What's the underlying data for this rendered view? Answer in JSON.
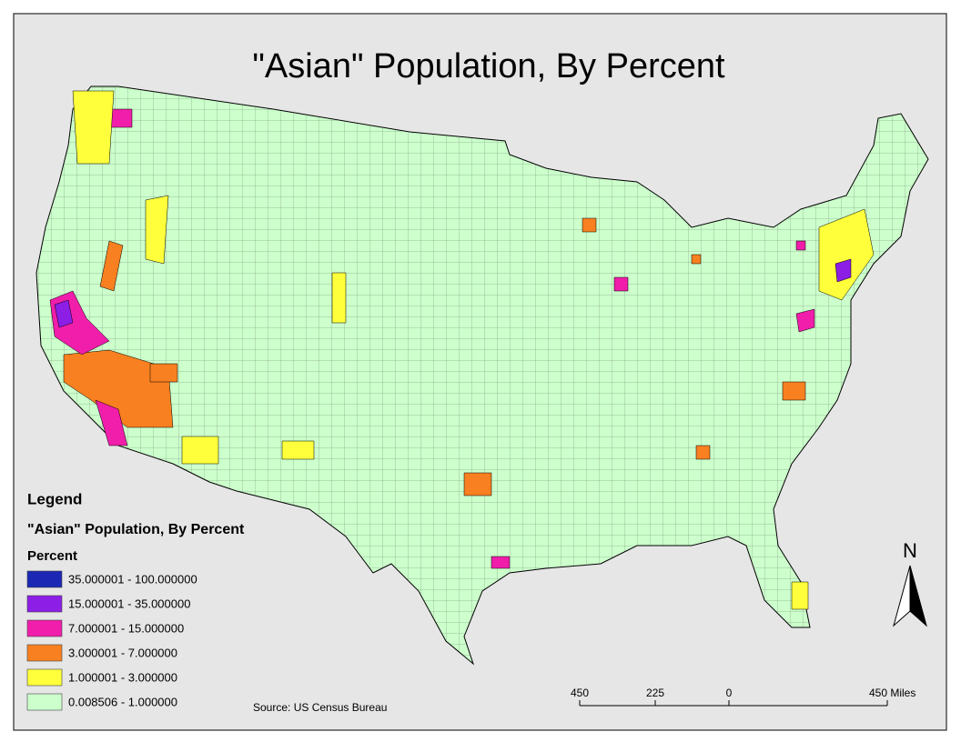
{
  "title": "\"Asian\" Population, By Percent",
  "legend": {
    "heading": "Legend",
    "layer": "\"Asian\" Population, By Percent",
    "field": "Percent",
    "classes": [
      {
        "label": "35.000001 - 100.000000",
        "color": "#1c28b4"
      },
      {
        "label": "15.000001 - 35.000000",
        "color": "#8c1ee6"
      },
      {
        "label": "7.000001 - 15.000000",
        "color": "#f01eaa"
      },
      {
        "label": "3.000001 - 7.000000",
        "color": "#f88020"
      },
      {
        "label": "1.000001 - 3.000000",
        "color": "#ffff3c"
      },
      {
        "label": "0.008506 - 1.000000",
        "color": "#ccffcc"
      }
    ]
  },
  "source": "Source: US Census Bureau",
  "north": "N",
  "scale_bar": {
    "labels": [
      "450",
      "225",
      "0",
      "450 Miles"
    ]
  }
}
